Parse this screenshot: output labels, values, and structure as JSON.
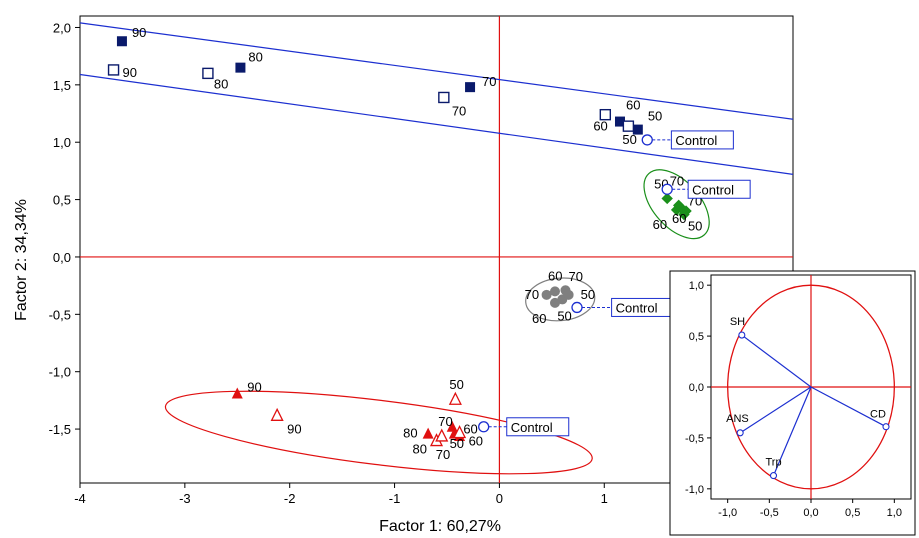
{
  "chart_data": [
    {
      "type": "scatter",
      "xlabel": "Factor 1: 60,27%",
      "ylabel": "Factor 2: 34,34%",
      "xlim": [
        -4,
        2.8
      ],
      "ylim": [
        -1.97,
        2.1
      ],
      "x_ticks": [
        "-4",
        "-3",
        "-2",
        "-1",
        "0",
        "1",
        "2"
      ],
      "x_tick_values": [
        -4,
        -3,
        -2,
        -1,
        0,
        1,
        2
      ],
      "y_ticks": [
        "2,0",
        "1,5",
        "1,0",
        "0,5",
        "0,0",
        "-0,5",
        "-1,0",
        "-1,5"
      ],
      "y_tick_values": [
        2.0,
        1.5,
        1.0,
        0.5,
        0.0,
        -0.5,
        -1.0,
        -1.5
      ],
      "colors": {
        "navy": "#0a1a6b",
        "green": "#1a8f1a",
        "gray": "#7f7f7f",
        "red": "#e01010",
        "blue": "#1c2fd0",
        "control": "#1c2fd0"
      },
      "series": [
        {
          "marker": "square-filled",
          "color": "navy",
          "points": [
            {
              "x": -3.6,
              "y": 1.88,
              "label": "90"
            },
            {
              "x": -2.47,
              "y": 1.65,
              "label": "80"
            },
            {
              "x": -0.28,
              "y": 1.48,
              "label": "70"
            },
            {
              "x": 1.15,
              "y": 1.18,
              "label": "60"
            },
            {
              "x": 1.32,
              "y": 1.11,
              "label": "50"
            }
          ]
        },
        {
          "marker": "square-open",
          "color": "navy",
          "points": [
            {
              "x": -3.68,
              "y": 1.63,
              "label": "90"
            },
            {
              "x": -2.78,
              "y": 1.6,
              "label": "80"
            },
            {
              "x": -0.53,
              "y": 1.39,
              "label": "70"
            },
            {
              "x": 1.01,
              "y": 1.24,
              "label": "60"
            },
            {
              "x": 1.23,
              "y": 1.14,
              "label": "50"
            }
          ]
        },
        {
          "marker": "diamond",
          "color": "green",
          "points": [
            {
              "x": 1.6,
              "y": 0.51,
              "label": "50"
            },
            {
              "x": 1.73,
              "y": 0.43,
              "label": "70"
            },
            {
              "x": 1.69,
              "y": 0.41,
              "label": "60"
            },
            {
              "x": 1.78,
              "y": 0.4,
              "label": "60"
            },
            {
              "x": 1.71,
              "y": 0.45,
              "label": "70"
            },
            {
              "x": 1.76,
              "y": 0.37,
              "label": "50"
            }
          ]
        },
        {
          "marker": "circle",
          "color": "gray",
          "points": [
            {
              "x": 0.45,
              "y": -0.33,
              "label": "70"
            },
            {
              "x": 0.53,
              "y": -0.3,
              "label": "60"
            },
            {
              "x": 0.53,
              "y": -0.4,
              "label": "60"
            },
            {
              "x": 0.6,
              "y": -0.37,
              "label": "50"
            },
            {
              "x": 0.63,
              "y": -0.29,
              "label": "70"
            },
            {
              "x": 0.66,
              "y": -0.33,
              "label": "50"
            }
          ]
        },
        {
          "marker": "triangle-filled",
          "color": "red",
          "points": [
            {
              "x": -2.5,
              "y": -1.19,
              "label": "90"
            },
            {
              "x": -0.68,
              "y": -1.54,
              "label": "80"
            },
            {
              "x": -0.45,
              "y": -1.48,
              "label": "70"
            },
            {
              "x": -0.43,
              "y": -1.54,
              "label": "60"
            },
            {
              "x": -0.38,
              "y": -1.56,
              "label": "50"
            }
          ]
        },
        {
          "marker": "triangle-open",
          "color": "red",
          "points": [
            {
              "x": -2.12,
              "y": -1.38,
              "label": "90"
            },
            {
              "x": -0.6,
              "y": -1.6,
              "label": "80"
            },
            {
              "x": -0.55,
              "y": -1.56,
              "label": "70"
            },
            {
              "x": -0.42,
              "y": -1.24,
              "label": "50"
            },
            {
              "x": -0.38,
              "y": -1.53,
              "label": "60"
            }
          ]
        }
      ],
      "controls": [
        {
          "x": 1.41,
          "y": 1.02,
          "label": "Control"
        },
        {
          "x": 1.6,
          "y": 0.59,
          "label": "Control"
        },
        {
          "x": 0.74,
          "y": -0.44,
          "label": "Control"
        },
        {
          "x": -0.15,
          "y": -1.48,
          "label": "Control"
        }
      ]
    },
    {
      "type": "scatter",
      "title": "",
      "xlim": [
        -1.2,
        1.2
      ],
      "ylim": [
        -1.1,
        1.1
      ],
      "x_ticks": [
        "-1,0",
        "-0,5",
        "0,0",
        "0,5",
        "1,0"
      ],
      "x_tick_values": [
        -1.0,
        -0.5,
        0.0,
        0.5,
        1.0
      ],
      "y_ticks": [
        "1,0",
        "0,5",
        "0,0",
        "-0,5",
        "-1,0"
      ],
      "y_tick_values": [
        1.0,
        0.5,
        0.0,
        -0.5,
        -1.0
      ],
      "variables": [
        {
          "name": "SH",
          "x": -0.83,
          "y": 0.51
        },
        {
          "name": "ANS",
          "x": -0.85,
          "y": -0.45
        },
        {
          "name": "Trp",
          "x": -0.45,
          "y": -0.87
        },
        {
          "name": "CD",
          "x": 0.9,
          "y": -0.39
        }
      ]
    }
  ]
}
